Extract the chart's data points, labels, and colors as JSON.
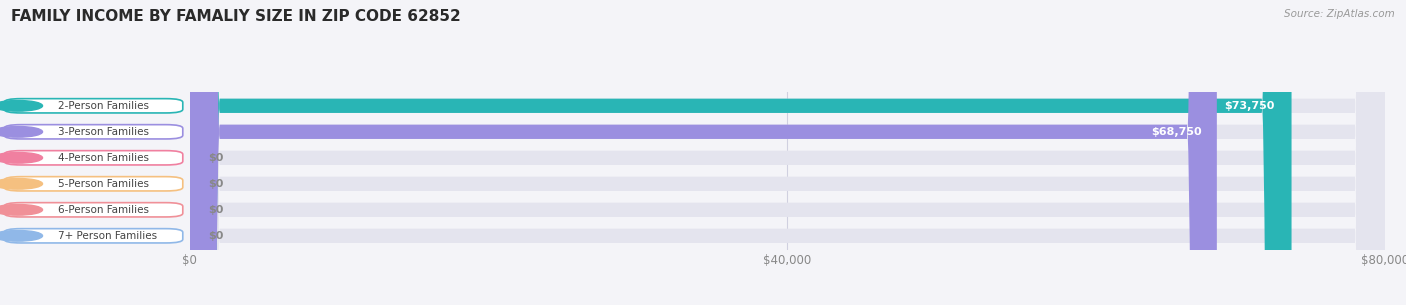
{
  "title": "FAMILY INCOME BY FAMALIY SIZE IN ZIP CODE 62852",
  "source": "Source: ZipAtlas.com",
  "categories": [
    "2-Person Families",
    "3-Person Families",
    "4-Person Families",
    "5-Person Families",
    "6-Person Families",
    "7+ Person Families"
  ],
  "values": [
    73750,
    68750,
    0,
    0,
    0,
    0
  ],
  "bar_colors": [
    "#29b5b5",
    "#9b8fe0",
    "#f080a0",
    "#f5c080",
    "#f09098",
    "#90b8e8"
  ],
  "value_labels": [
    "$73,750",
    "$68,750",
    "$0",
    "$0",
    "$0",
    "$0"
  ],
  "xlim_data": [
    0,
    80000
  ],
  "xtick_vals": [
    0,
    40000,
    80000
  ],
  "xtick_labels": [
    "$0",
    "$40,000",
    "$80,000"
  ],
  "bg_color": "#f4f4f8",
  "bar_bg_color": "#e4e4ee",
  "title_color": "#2a2a2a",
  "source_color": "#999999",
  "label_text_color": "#444444",
  "value_text_color_white": "#ffffff",
  "value_text_color_gray": "#888888",
  "figsize": [
    14.06,
    3.05
  ],
  "dpi": 100
}
